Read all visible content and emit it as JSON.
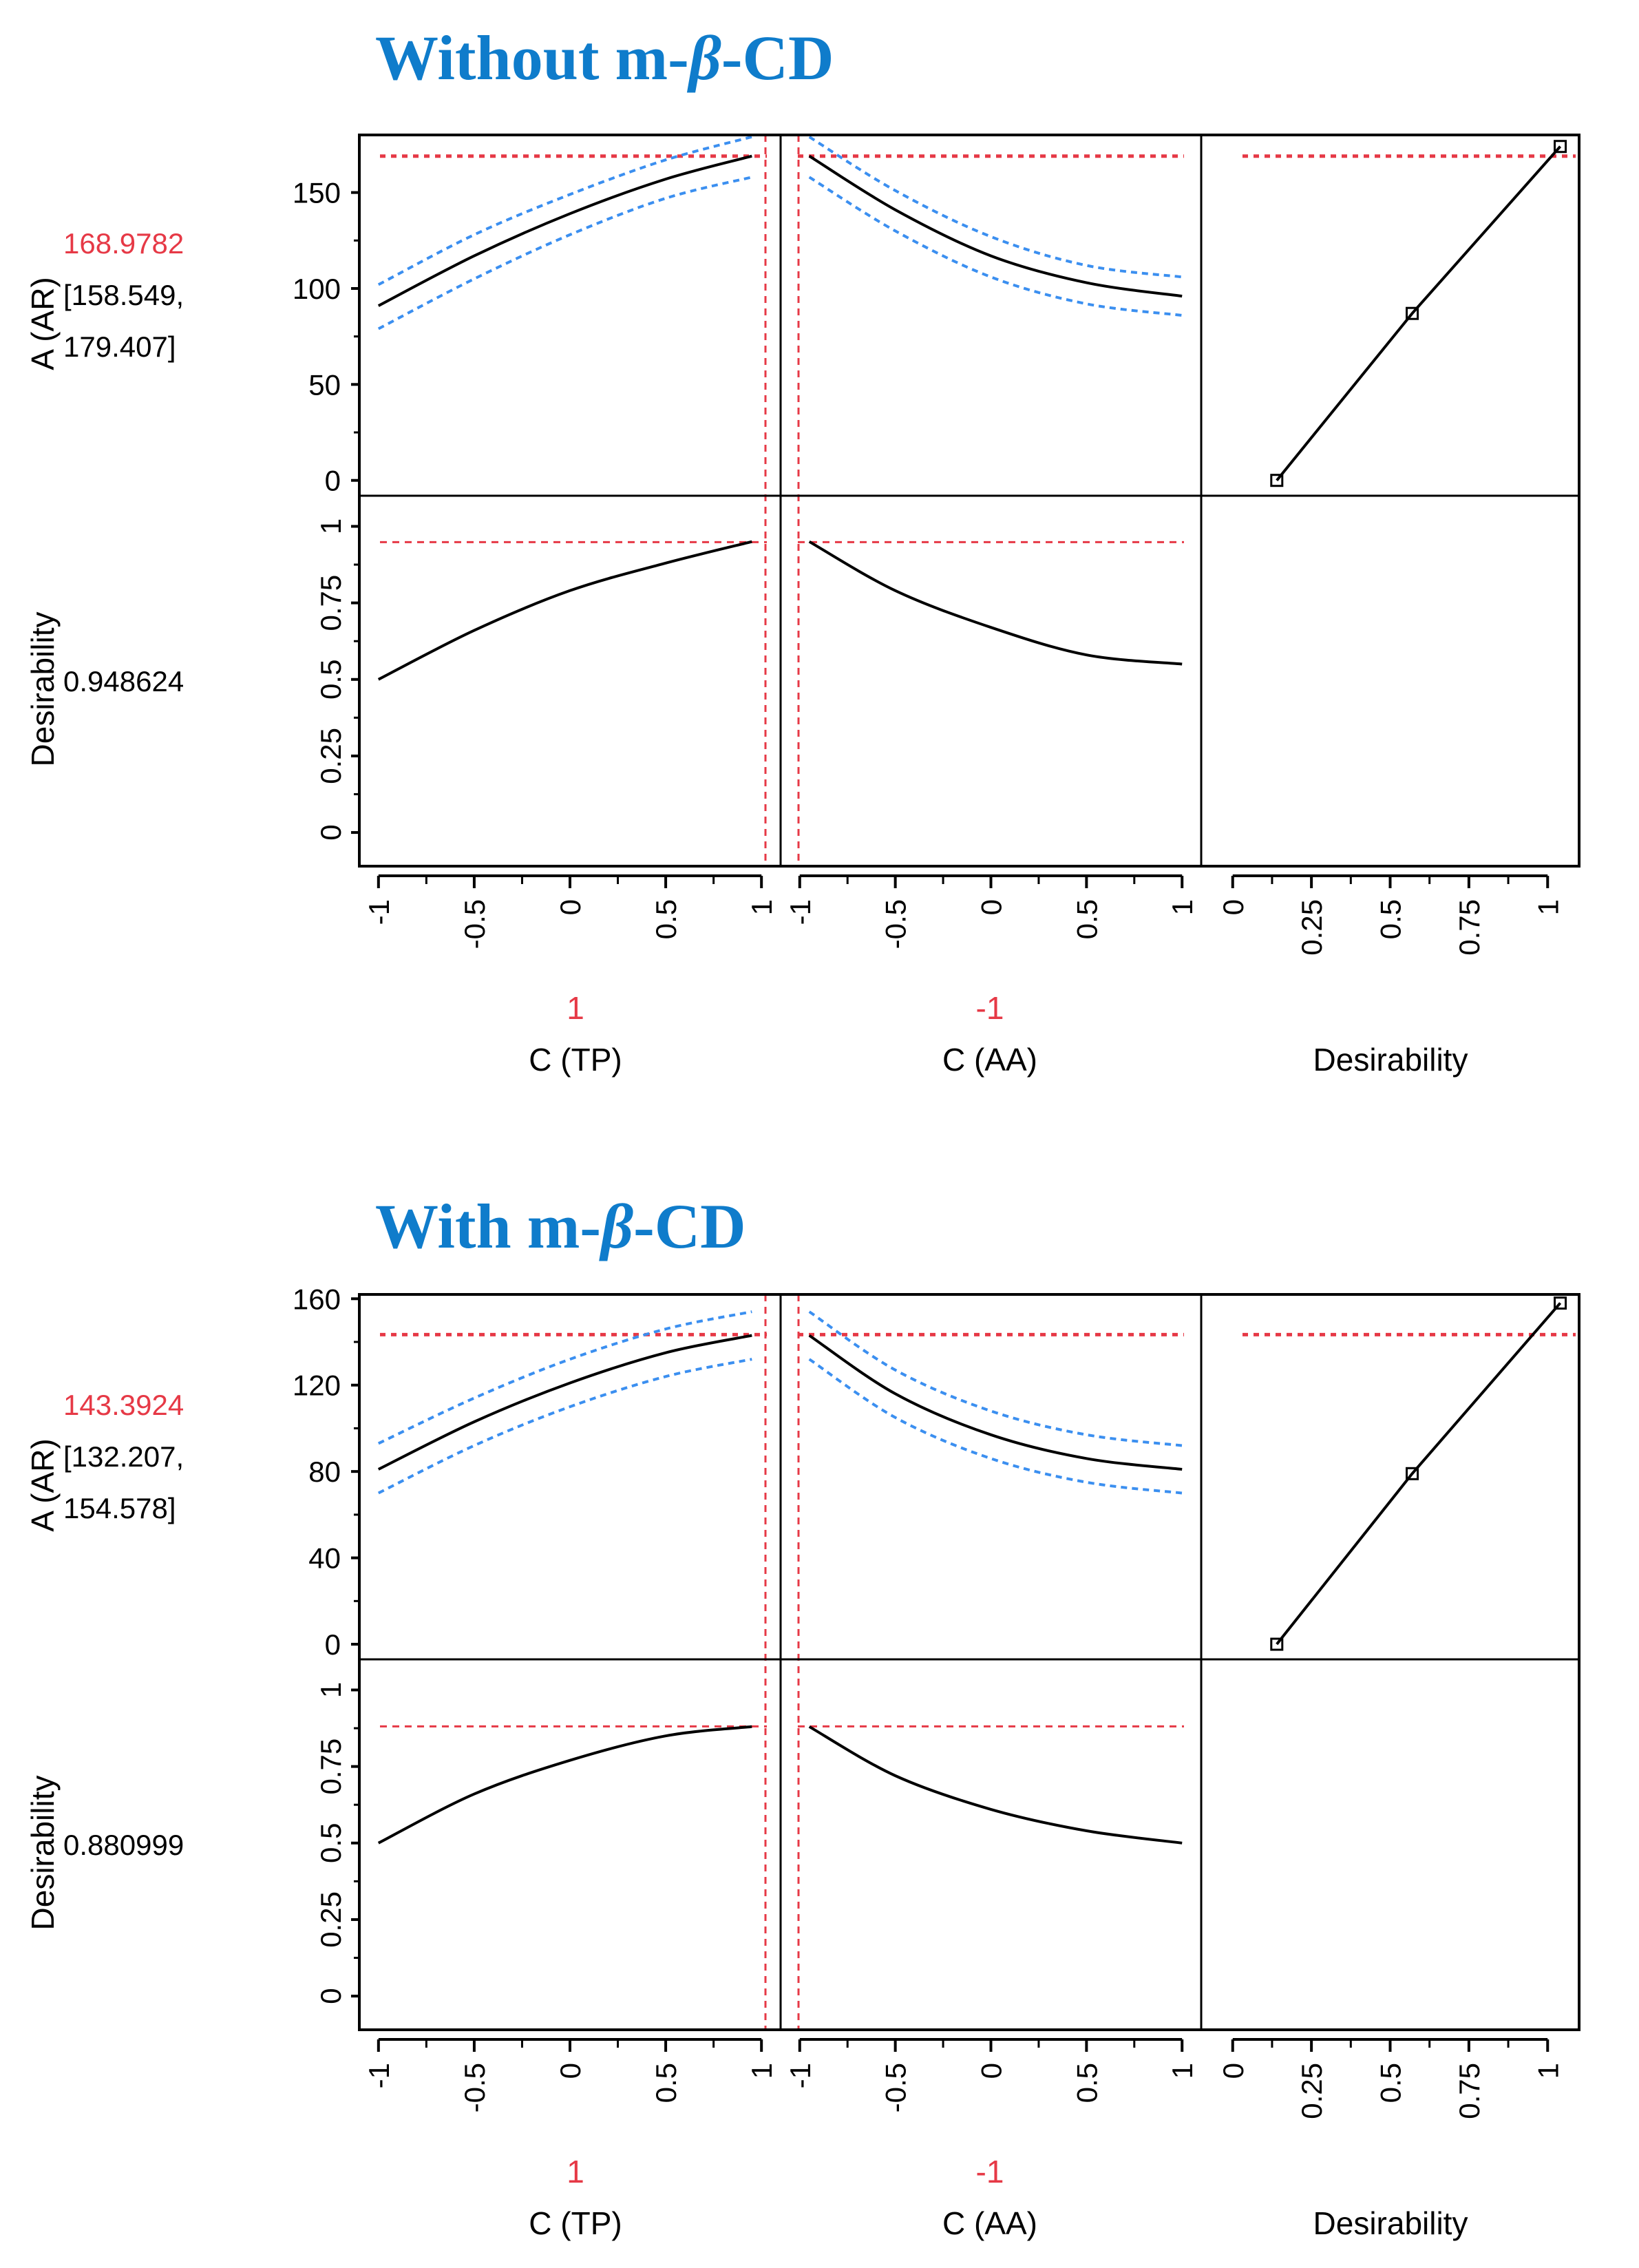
{
  "chart_data": [
    {
      "type": "line",
      "title_parts": [
        "Without m-",
        "β",
        "-CD"
      ],
      "factors": [
        {
          "name": "C (TP)",
          "current": "1",
          "x": [
            -1,
            -0.5,
            0,
            0.5,
            1
          ],
          "ticks": [
            "-1",
            "-0.5",
            "0",
            "0.5",
            "1"
          ]
        },
        {
          "name": "C (AA)",
          "current": "-1",
          "x": [
            -1,
            -0.5,
            0,
            0.5,
            1
          ],
          "ticks": [
            "-1",
            "-0.5",
            "0",
            "0.5",
            "1"
          ]
        },
        {
          "name": "Desirability",
          "current": "",
          "ticks": [
            "0",
            "0.25",
            "0.5",
            "0.75",
            "1"
          ]
        }
      ],
      "responses": [
        {
          "name": "A (AR)",
          "value": "168.9782",
          "ci_text": [
            "[158.549,",
            "179.407]"
          ],
          "ylim": [
            -8,
            180
          ],
          "yticks": [
            0,
            50,
            100,
            150
          ],
          "ytick_labels": [
            "0",
            "50",
            "100",
            "150"
          ],
          "current_value": 168.98,
          "series": [
            {
              "factor": "C (TP)",
              "x": [
                -1,
                -0.5,
                0,
                0.5,
                0.95
              ],
              "y": [
                91,
                117,
                139,
                157,
                169
              ],
              "lower": [
                79,
                105,
                128,
                147,
                158
              ],
              "upper": [
                102,
                128,
                149,
                167,
                179
              ]
            },
            {
              "factor": "C (AA)",
              "x": [
                -0.95,
                -0.5,
                0,
                0.5,
                1
              ],
              "y": [
                169,
                141,
                117,
                103,
                96
              ],
              "lower": [
                158,
                130,
                106,
                92,
                86
              ],
              "upper": [
                179,
                151,
                127,
                112,
                106
              ]
            },
            {
              "factor": "Desirability",
              "x": [
                0.14,
                0.57,
                1.04
              ],
              "y": [
                0,
                87,
                174
              ]
            }
          ]
        },
        {
          "name": "Desirability",
          "value": "0.948624",
          "ylim": [
            -0.11,
            1.1
          ],
          "yticks": [
            0,
            0.25,
            0.5,
            0.75,
            1
          ],
          "ytick_labels": [
            "0",
            "0.25",
            "0.5",
            "0.75",
            "1"
          ],
          "current_value": 0.9486,
          "series": [
            {
              "factor": "C (TP)",
              "x": [
                -1,
                -0.5,
                0,
                0.5,
                0.95
              ],
              "y": [
                0.5,
                0.66,
                0.79,
                0.88,
                0.95
              ]
            },
            {
              "factor": "C (AA)",
              "x": [
                -0.95,
                -0.5,
                0,
                0.5,
                1
              ],
              "y": [
                0.95,
                0.79,
                0.67,
                0.58,
                0.55
              ]
            }
          ]
        }
      ]
    },
    {
      "type": "line",
      "title_parts": [
        "With m-",
        "β",
        "-CD"
      ],
      "factors": [
        {
          "name": "C (TP)",
          "current": "1",
          "x": [
            -1,
            -0.5,
            0,
            0.5,
            1
          ],
          "ticks": [
            "-1",
            "-0.5",
            "0",
            "0.5",
            "1"
          ]
        },
        {
          "name": "C (AA)",
          "current": "-1",
          "x": [
            -1,
            -0.5,
            0,
            0.5,
            1
          ],
          "ticks": [
            "-1",
            "-0.5",
            "0",
            "0.5",
            "1"
          ]
        },
        {
          "name": "Desirability",
          "current": "",
          "ticks": [
            "0",
            "0.25",
            "0.5",
            "0.75",
            "1"
          ]
        }
      ],
      "responses": [
        {
          "name": "A (AR)",
          "value": "143.3924",
          "ci_text": [
            "[132.207,",
            "154.578]"
          ],
          "ylim": [
            -7,
            162
          ],
          "yticks": [
            0,
            40,
            80,
            120,
            160
          ],
          "ytick_labels": [
            "0",
            "40",
            "80",
            "120",
            "160"
          ],
          "current_value": 143.39,
          "series": [
            {
              "factor": "C (TP)",
              "x": [
                -1,
                -0.5,
                0,
                0.5,
                0.95
              ],
              "y": [
                81,
                103,
                121,
                135,
                143
              ],
              "lower": [
                70,
                92,
                110,
                124,
                132
              ],
              "upper": [
                93,
                114,
                132,
                146,
                154
              ]
            },
            {
              "factor": "C (AA)",
              "x": [
                -0.95,
                -0.5,
                0,
                0.5,
                1
              ],
              "y": [
                143,
                116,
                97,
                86,
                81
              ],
              "lower": [
                132,
                105,
                86,
                75,
                70
              ],
              "upper": [
                154,
                127,
                108,
                97,
                92
              ]
            },
            {
              "factor": "Desirability",
              "x": [
                0.14,
                0.57,
                1.04
              ],
              "y": [
                0,
                79,
                158
              ]
            }
          ]
        },
        {
          "name": "Desirability",
          "value": "0.880999",
          "ylim": [
            -0.11,
            1.1
          ],
          "yticks": [
            0,
            0.25,
            0.5,
            0.75,
            1
          ],
          "ytick_labels": [
            "0",
            "0.25",
            "0.5",
            "0.75",
            "1"
          ],
          "current_value": 0.881,
          "series": [
            {
              "factor": "C (TP)",
              "x": [
                -1,
                -0.5,
                0,
                0.5,
                0.95
              ],
              "y": [
                0.5,
                0.66,
                0.77,
                0.85,
                0.88
              ]
            },
            {
              "factor": "C (AA)",
              "x": [
                -0.95,
                -0.5,
                0,
                0.5,
                1
              ],
              "y": [
                0.88,
                0.72,
                0.61,
                0.54,
                0.5
              ]
            }
          ]
        }
      ]
    }
  ]
}
